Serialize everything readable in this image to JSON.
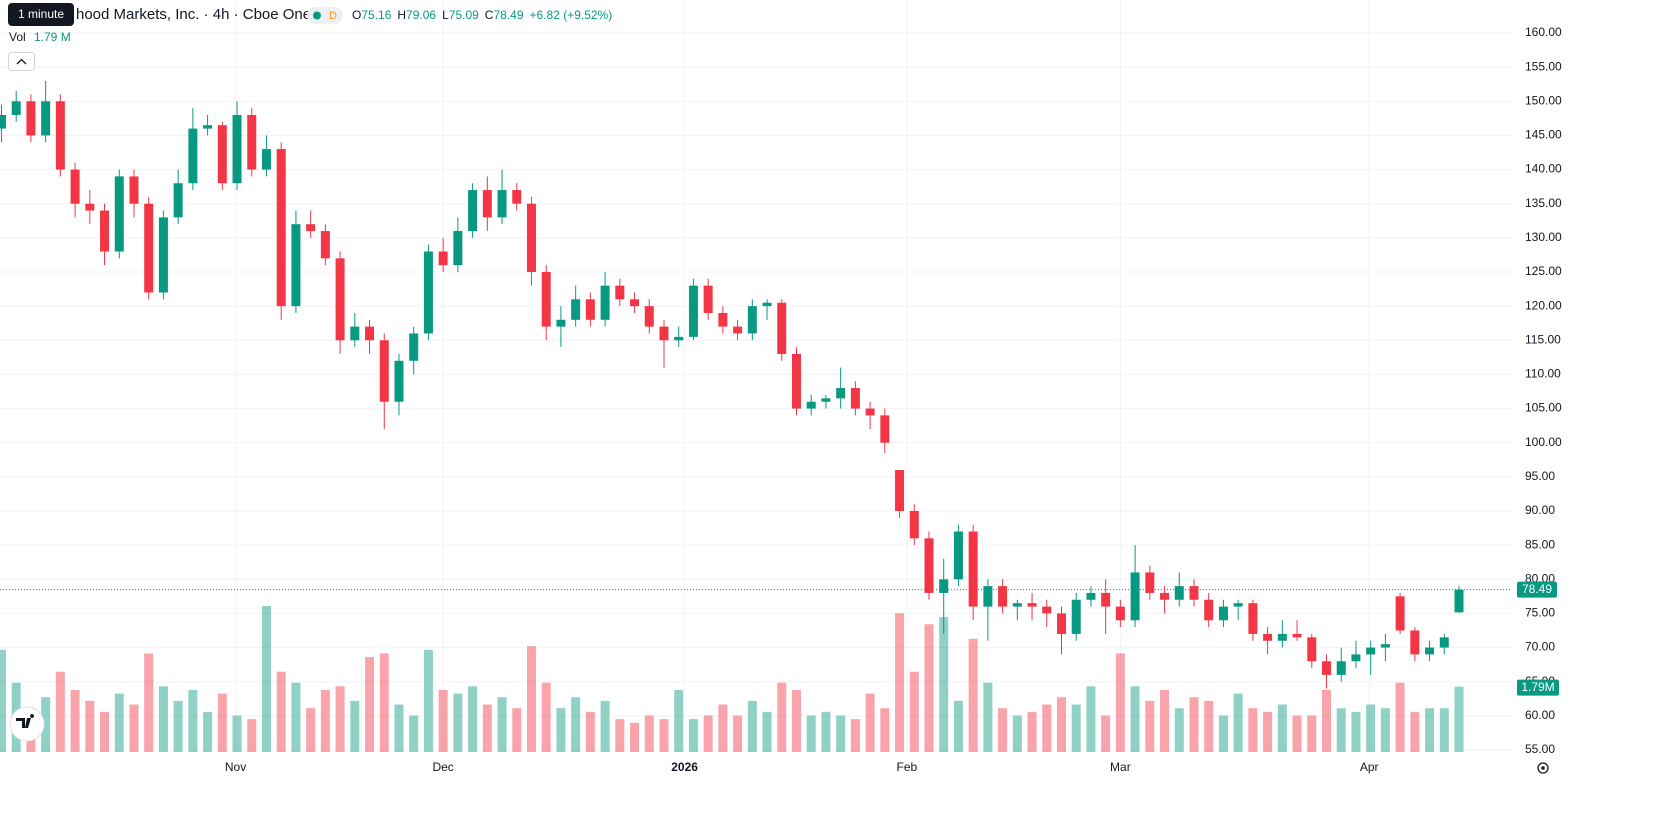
{
  "chart_data": {
    "type": "candlestick",
    "title": "hood Markets, Inc. · 4h · Cboe One",
    "tooltip": "1 minute",
    "badge": "D",
    "ohlc": [
      {
        "label": "O",
        "value": 75.16
      },
      {
        "label": "H",
        "value": 79.06
      },
      {
        "label": "L",
        "value": 75.09
      },
      {
        "label": "C",
        "value": 78.49
      }
    ],
    "change": {
      "value": 6.82,
      "label": "+6.82 (+9.52%)"
    },
    "volume_header": {
      "label": "Vol",
      "value_label": "1.79 M"
    },
    "last_volume_label": "1.79M",
    "up_color": "#089981",
    "down_color": "#f23645",
    "grid": true,
    "ylim": [
      55,
      160
    ],
    "yticks": [
      {
        "value": 55,
        "label": "55.00"
      },
      {
        "value": 60,
        "label": "60.00"
      },
      {
        "value": 65,
        "label": "65.00"
      },
      {
        "value": 70,
        "label": "70.00"
      },
      {
        "value": 75,
        "label": "75.00"
      },
      {
        "value": 80,
        "label": "80.00"
      },
      {
        "value": 85,
        "label": "85.00"
      },
      {
        "value": 90,
        "label": "90.00"
      },
      {
        "value": 95,
        "label": "95.00"
      },
      {
        "value": 100,
        "label": "100.00"
      },
      {
        "value": 105,
        "label": "105.00"
      },
      {
        "value": 110,
        "label": "110.00"
      },
      {
        "value": 115,
        "label": "115.00"
      },
      {
        "value": 120,
        "label": "120.00"
      },
      {
        "value": 125,
        "label": "125.00"
      },
      {
        "value": 130,
        "label": "130.00"
      },
      {
        "value": 135,
        "label": "135.00"
      },
      {
        "value": 140,
        "label": "140.00"
      },
      {
        "value": 145,
        "label": "145.00"
      },
      {
        "value": 150,
        "label": "150.00"
      },
      {
        "value": 155,
        "label": "155.00"
      },
      {
        "value": 160,
        "label": "160.00"
      }
    ],
    "xlim": [
      -0.1,
      102.6
    ],
    "xticks": [
      {
        "value": 15.9,
        "label": "Nov"
      },
      {
        "value": 30,
        "label": "Dec"
      },
      {
        "value": 46.4,
        "label": "2026"
      },
      {
        "value": 61.5,
        "label": "Feb"
      },
      {
        "value": 76,
        "label": "Mar"
      },
      {
        "value": 92.9,
        "label": "Apr"
      }
    ],
    "candles": [
      [
        146,
        149.5,
        144,
        148
      ],
      [
        148,
        151.5,
        147,
        150
      ],
      [
        150,
        151,
        144,
        145
      ],
      [
        145,
        153,
        144,
        150
      ],
      [
        150,
        151,
        139,
        140
      ],
      [
        140,
        141,
        133,
        135
      ],
      [
        135,
        137,
        132,
        134
      ],
      [
        134,
        135,
        126,
        128
      ],
      [
        128,
        140,
        127,
        139
      ],
      [
        139,
        140,
        133,
        135
      ],
      [
        135,
        136,
        121,
        122
      ],
      [
        122,
        134,
        121,
        133
      ],
      [
        133,
        140,
        132,
        138
      ],
      [
        138,
        149,
        137,
        146
      ],
      [
        146,
        148,
        145,
        146.5
      ],
      [
        146.5,
        147,
        137,
        138
      ],
      [
        138,
        150,
        137,
        148
      ],
      [
        148,
        149,
        139,
        140
      ],
      [
        140,
        145,
        139,
        143
      ],
      [
        143,
        144,
        118,
        120
      ],
      [
        120,
        134,
        119,
        132
      ],
      [
        132,
        134,
        130,
        131
      ],
      [
        131,
        132,
        126,
        127
      ],
      [
        127,
        128,
        113,
        115
      ],
      [
        115,
        119,
        114,
        117
      ],
      [
        117,
        118,
        113,
        115
      ],
      [
        115,
        116,
        102,
        106
      ],
      [
        106,
        113,
        104,
        112
      ],
      [
        112,
        117,
        110,
        116
      ],
      [
        116,
        129,
        115,
        128
      ],
      [
        128,
        130,
        125,
        126
      ],
      [
        126,
        133,
        125,
        131
      ],
      [
        131,
        138,
        130,
        137
      ],
      [
        137,
        139,
        131,
        133
      ],
      [
        133,
        140,
        132,
        137
      ],
      [
        137,
        138,
        134,
        135
      ],
      [
        135,
        136,
        123,
        125
      ],
      [
        125,
        126,
        115,
        117
      ],
      [
        117,
        120,
        114,
        118
      ],
      [
        118,
        123,
        117,
        121
      ],
      [
        121,
        122,
        117,
        118
      ],
      [
        118,
        125,
        117,
        123
      ],
      [
        123,
        124,
        120,
        121
      ],
      [
        121,
        122,
        119,
        120
      ],
      [
        120,
        121,
        116,
        117
      ],
      [
        117,
        118,
        111,
        115
      ],
      [
        115,
        117,
        114,
        115.5
      ],
      [
        115.5,
        124,
        115,
        123
      ],
      [
        123,
        124,
        118,
        119
      ],
      [
        119,
        120,
        116,
        117
      ],
      [
        117,
        118,
        115,
        116
      ],
      [
        116,
        121,
        115,
        120
      ],
      [
        120,
        121,
        118,
        120.5
      ],
      [
        120.5,
        121,
        112,
        113
      ],
      [
        113,
        114,
        104,
        105
      ],
      [
        105,
        107,
        104,
        106
      ],
      [
        106,
        107,
        105,
        106.5
      ],
      [
        106.5,
        111,
        105,
        108
      ],
      [
        108,
        109,
        104,
        105
      ],
      [
        105,
        106,
        102,
        104
      ],
      [
        104,
        105,
        98.5,
        100
      ],
      [
        96,
        96,
        89,
        90
      ],
      [
        90,
        91,
        85,
        86
      ],
      [
        86,
        87,
        77,
        78
      ],
      [
        78,
        83,
        72,
        80
      ],
      [
        80,
        88,
        79,
        87
      ],
      [
        87,
        88,
        74,
        76
      ],
      [
        76,
        80,
        71,
        79
      ],
      [
        79,
        80,
        75,
        76
      ],
      [
        76,
        77,
        74,
        76.5
      ],
      [
        76.5,
        78,
        74,
        76
      ],
      [
        76,
        77,
        73,
        75
      ],
      [
        75,
        76,
        69,
        72
      ],
      [
        72,
        78,
        71,
        77
      ],
      [
        77,
        79,
        76,
        78
      ],
      [
        78,
        80,
        72,
        76
      ],
      [
        76,
        77,
        73,
        74
      ],
      [
        74,
        85,
        73,
        81
      ],
      [
        81,
        82,
        77,
        78
      ],
      [
        78,
        79,
        75,
        77
      ],
      [
        77,
        81,
        76,
        79
      ],
      [
        79,
        80,
        76,
        77
      ],
      [
        77,
        78,
        73,
        74
      ],
      [
        74,
        77,
        73,
        76
      ],
      [
        76,
        77,
        74,
        76.5
      ],
      [
        76.5,
        77,
        71,
        72
      ],
      [
        72,
        73,
        69,
        71
      ],
      [
        71,
        74,
        70,
        72
      ],
      [
        72,
        74,
        71,
        71.5
      ],
      [
        71.5,
        72,
        67,
        68
      ],
      [
        68,
        69,
        64,
        66
      ],
      [
        66,
        70,
        65,
        68
      ],
      [
        68,
        71,
        67,
        69
      ],
      [
        69,
        71,
        66,
        70
      ],
      [
        70,
        72,
        68,
        70.5
      ],
      [
        77.5,
        78,
        72,
        72.5
      ],
      [
        72.5,
        73,
        68,
        69
      ],
      [
        69,
        71,
        68,
        70
      ],
      [
        70,
        72,
        69,
        71.5
      ],
      [
        75.16,
        79.06,
        75.09,
        78.49
      ]
    ],
    "volumes": [
      2.8,
      1.9,
      1.2,
      1.5,
      2.2,
      1.7,
      1.4,
      1.1,
      1.6,
      1.3,
      2.7,
      1.8,
      1.4,
      1.7,
      1.1,
      1.6,
      1.0,
      0.9,
      4.0,
      2.2,
      1.9,
      1.2,
      1.7,
      1.8,
      1.4,
      2.6,
      2.7,
      1.3,
      1.0,
      2.8,
      1.7,
      1.6,
      1.8,
      1.3,
      1.5,
      1.2,
      2.9,
      1.9,
      1.2,
      1.5,
      1.1,
      1.4,
      0.9,
      0.8,
      1.0,
      0.9,
      1.7,
      0.9,
      1.0,
      1.3,
      1.0,
      1.4,
      1.1,
      1.9,
      1.7,
      1.0,
      1.1,
      1.0,
      0.9,
      1.6,
      1.2,
      3.8,
      2.2,
      3.5,
      3.7,
      1.4,
      3.1,
      1.9,
      1.2,
      1.0,
      1.1,
      1.3,
      1.5,
      1.3,
      1.8,
      1.0,
      2.7,
      1.8,
      1.4,
      1.7,
      1.2,
      1.5,
      1.4,
      1.0,
      1.6,
      1.2,
      1.1,
      1.3,
      1.0,
      1.0,
      1.7,
      1.2,
      1.1,
      1.3,
      1.2,
      1.9,
      1.1,
      1.2,
      1.2,
      1.79
    ]
  }
}
